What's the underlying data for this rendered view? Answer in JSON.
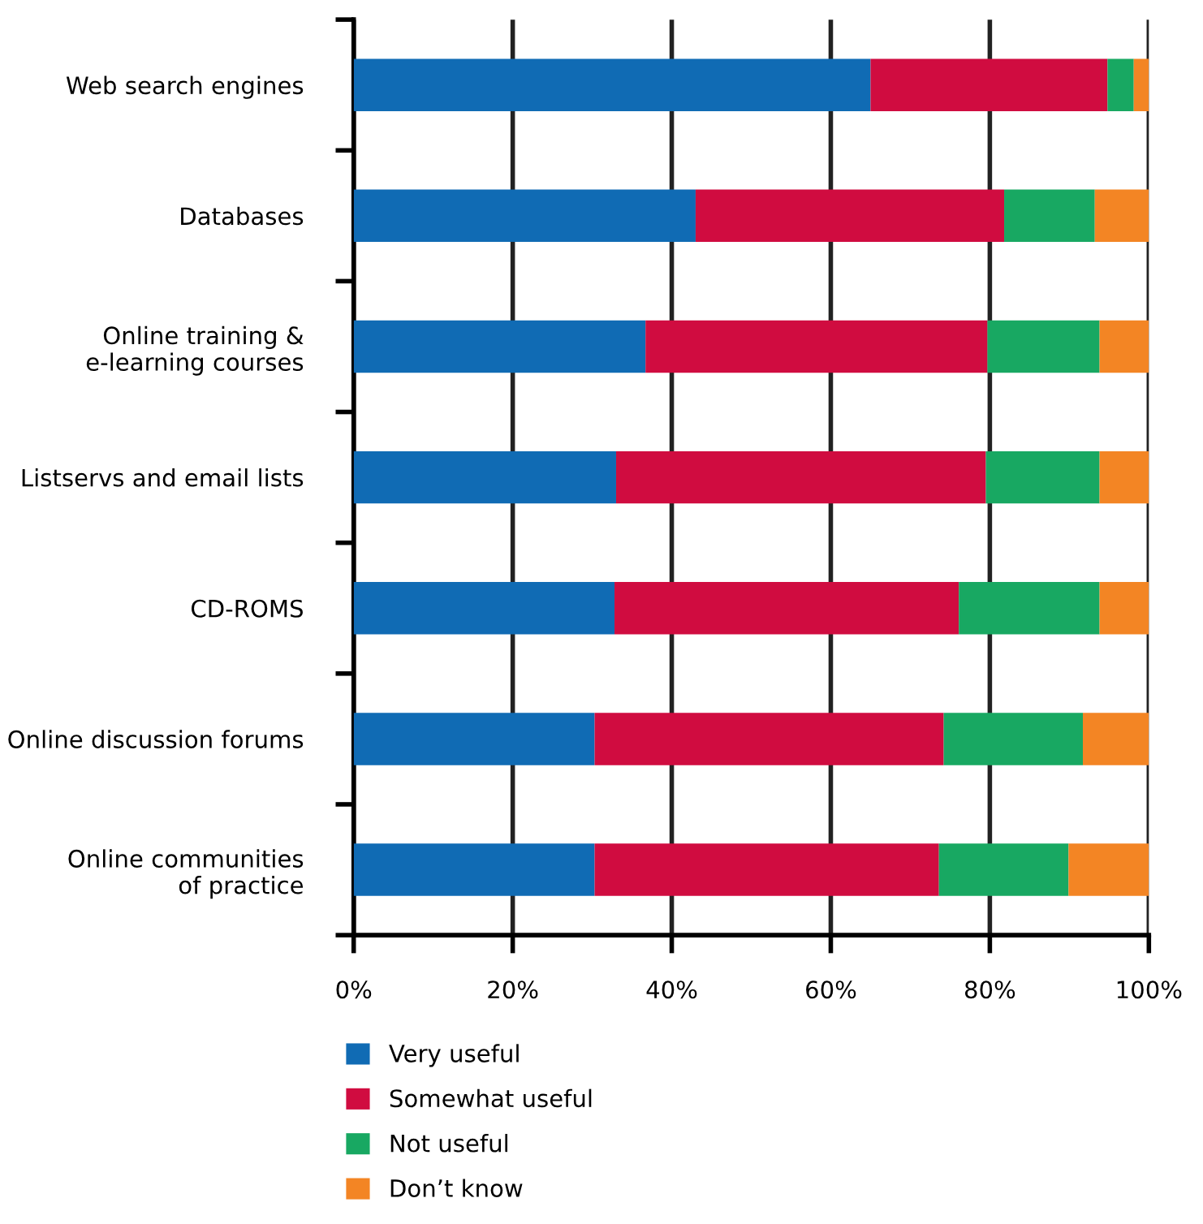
{
  "chart_data": {
    "type": "bar",
    "orientation": "horizontal",
    "stacked": true,
    "categories": [
      "Web search engines",
      "Databases",
      "Online training &\ne-learning courses",
      "Listservs and email lists",
      "CD-ROMS",
      "Online discussion forums",
      "Online communities\nof practice"
    ],
    "series": [
      {
        "name": "Very useful",
        "color": "#106bb4",
        "values": [
          65.0,
          43.0,
          36.7,
          33.0,
          32.8,
          30.3,
          30.3
        ]
      },
      {
        "name": "Somewhat useful",
        "color": "#d00c40",
        "values": [
          29.8,
          38.8,
          43.0,
          46.5,
          43.3,
          43.9,
          43.3
        ]
      },
      {
        "name": "Not useful",
        "color": "#18a862",
        "values": [
          3.3,
          11.4,
          14.1,
          14.3,
          17.7,
          17.5,
          16.3
        ]
      },
      {
        "name": "Don’t know",
        "color": "#f38524",
        "values": [
          1.9,
          6.8,
          6.2,
          6.2,
          6.2,
          8.3,
          10.1
        ]
      }
    ],
    "xlim": [
      0,
      100
    ],
    "xticks": [
      {
        "value": 0,
        "label": "0%"
      },
      {
        "value": 20,
        "label": "20%"
      },
      {
        "value": 40,
        "label": "40%"
      },
      {
        "value": 60,
        "label": "60%"
      },
      {
        "value": 80,
        "label": "80%"
      },
      {
        "value": 100,
        "label": "100%"
      }
    ],
    "grid": "x",
    "legend": "bottom"
  }
}
